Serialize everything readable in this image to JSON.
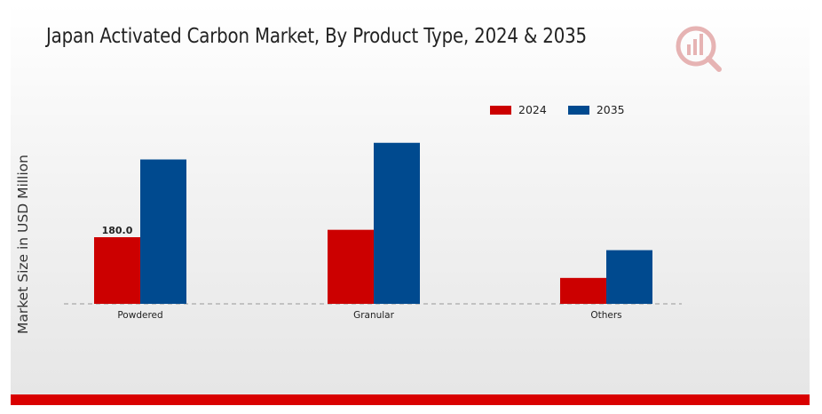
{
  "colors": {
    "series_2024": "#cc0000",
    "series_2035": "#004a8f",
    "accent": "#d90000"
  },
  "header": {
    "logo_icon": "market-research-logo-icon"
  },
  "chart_data": {
    "type": "bar",
    "title": "Japan Activated Carbon Market, By Product Type, 2024 & 2035",
    "xlabel": "",
    "ylabel": "Market Size in USD Million",
    "categories": [
      "Powdered",
      "Granular",
      "Others"
    ],
    "series": [
      {
        "name": "2024",
        "values": [
          180.0,
          200.0,
          70.0
        ]
      },
      {
        "name": "2035",
        "values": [
          390.0,
          435.0,
          145.0
        ]
      }
    ],
    "data_labels": [
      {
        "series": 0,
        "index": 0,
        "text": "180.0"
      }
    ],
    "ylim": [
      0,
      600
    ],
    "grid": false,
    "legend_position": "top-right"
  }
}
